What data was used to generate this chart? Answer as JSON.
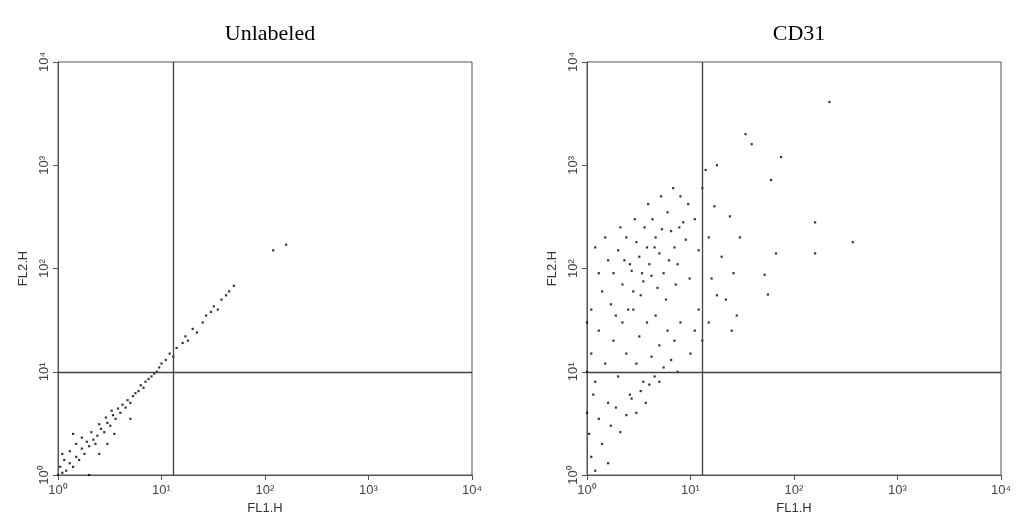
{
  "chart_data": [
    {
      "type": "scatter",
      "title": "Unlabeled",
      "xlabel": "FL1.H",
      "ylabel": "FL2.H",
      "log": "xy",
      "marker": "square",
      "xlim": [
        1,
        10000
      ],
      "ylim": [
        1,
        10000
      ],
      "xticks": [
        {
          "value": 1,
          "label": "10⁰"
        },
        {
          "value": 10,
          "label": "10¹"
        },
        {
          "value": 100,
          "label": "10²"
        },
        {
          "value": 1000,
          "label": "10³"
        },
        {
          "value": 10000,
          "label": "10⁴"
        }
      ],
      "yticks": [
        {
          "value": 1,
          "label": "10⁰"
        },
        {
          "value": 10,
          "label": "10¹"
        },
        {
          "value": 100,
          "label": "10²"
        },
        {
          "value": 1000,
          "label": "10³"
        },
        {
          "value": 10000,
          "label": "10⁴"
        }
      ],
      "ref_lines": [
        {
          "axis": "x",
          "value": 13,
          "color": "#404040"
        },
        {
          "axis": "y",
          "value": 10,
          "color": "#404040"
        }
      ],
      "series": [
        {
          "color": "#000000",
          "x": [
            1.0,
            1.1,
            1.05,
            1.2,
            1.3,
            1.15,
            1.4,
            1.5,
            1.3,
            1.6,
            1.7,
            1.5,
            1.8,
            1.9,
            2.0,
            1.7,
            2.2,
            2.1,
            2.4,
            2.3,
            2.6,
            2.5,
            2.8,
            3.0,
            2.9,
            3.2,
            3.4,
            3.3,
            3.6,
            3.8,
            4.0,
            4.2,
            4.5,
            4.7,
            5.0,
            5.3,
            5.6,
            6.0,
            6.3,
            6.7,
            7.0,
            7.5,
            8.0,
            8.5,
            9.0,
            9.5,
            10,
            11,
            12,
            13,
            14,
            16,
            17,
            18,
            20,
            22,
            25,
            27,
            30,
            32,
            35,
            38,
            42,
            45,
            50,
            120,
            160,
            2.5,
            3.5,
            5.0,
            1.4,
            2.0,
            1.1,
            3.0
          ],
          "values": [
            1.0,
            1.05,
            1.2,
            1.1,
            1.3,
            1.4,
            1.2,
            1.5,
            1.7,
            1.4,
            1.8,
            2.0,
            1.6,
            2.1,
            1.9,
            2.3,
            2.2,
            2.6,
            2.4,
            2.0,
            2.8,
            3.1,
            2.6,
            3.2,
            3.6,
            3.0,
            3.8,
            4.2,
            3.5,
            4.4,
            4.0,
            4.8,
            4.5,
            5.3,
            5.0,
            5.8,
            6.2,
            6.5,
            7.4,
            7.0,
            8.0,
            8.5,
            9.0,
            9.6,
            10,
            11,
            12,
            13,
            15,
            14,
            17,
            19,
            22,
            20,
            26,
            24,
            30,
            35,
            38,
            43,
            40,
            50,
            55,
            60,
            68,
            150,
            170,
            1.6,
            2.5,
            3.5,
            2.5,
            1.0,
            1.6,
            2.0
          ]
        }
      ]
    },
    {
      "type": "scatter",
      "title": "CD31",
      "xlabel": "FL1.H",
      "ylabel": "FL2.H",
      "log": "xy",
      "marker": "square",
      "xlim": [
        1,
        10000
      ],
      "ylim": [
        1,
        10000
      ],
      "xticks": [
        {
          "value": 1,
          "label": "10⁰"
        },
        {
          "value": 10,
          "label": "10¹"
        },
        {
          "value": 100,
          "label": "10²"
        },
        {
          "value": 1000,
          "label": "10³"
        },
        {
          "value": 10000,
          "label": "10⁴"
        }
      ],
      "yticks": [
        {
          "value": 1,
          "label": "10⁰"
        },
        {
          "value": 10,
          "label": "10¹"
        },
        {
          "value": 100,
          "label": "10²"
        },
        {
          "value": 1000,
          "label": "10³"
        },
        {
          "value": 10000,
          "label": "10⁴"
        }
      ],
      "ref_lines": [
        {
          "axis": "x",
          "value": 13,
          "color": "#404040"
        },
        {
          "axis": "y",
          "value": 10,
          "color": "#404040"
        }
      ],
      "series": [
        {
          "color": "#000000",
          "x": [
            1.6,
            1.8,
            2.0,
            2.2,
            2.4,
            2.6,
            2.8,
            3.0,
            3.2,
            3.4,
            3.6,
            3.8,
            4.0,
            4.3,
            4.6,
            5.0,
            5.5,
            6.0,
            6.5,
            7.0,
            7.5,
            8.0,
            8.5,
            9.0,
            9.5,
            1.4,
            1.5,
            1.7,
            2.1,
            2.5,
            2.9,
            3.3,
            3.9,
            4.8,
            5.2,
            5.8,
            6.8,
            7.2,
            1.3,
            1.2,
            1.1,
            1.9,
            2.3,
            2.7,
            3.5,
            4.2,
            4.5,
            5.3,
            6.2,
            7.8,
            9.8,
            11,
            12,
            13,
            14,
            15,
            16,
            17,
            18,
            20,
            22,
            24,
            26,
            28,
            30,
            12,
            11,
            13,
            15,
            10,
            18,
            25,
            1.0,
            1.1,
            1.2,
            1.3,
            1.5,
            1.6,
            1.8,
            2.0,
            2.2,
            2.4,
            2.6,
            2.8,
            3.0,
            3.2,
            3.5,
            3.8,
            4.2,
            4.6,
            5.0,
            5.5,
            6.0,
            6.5,
            7.0,
            7.5,
            8.0,
            1.05,
            1.1,
            1.2,
            1.3,
            1.4,
            1.6,
            1.7,
            1.9,
            2.1,
            2.4,
            2.7,
            3.0,
            3.3,
            3.7,
            4.0,
            4.5,
            5.0,
            1.0,
            1.0,
            1.15,
            220,
            34,
            39,
            75,
            160,
            370,
            160,
            67,
            56,
            52,
            60
          ],
          "values": [
            120,
            90,
            150,
            70,
            200,
            110,
            60,
            180,
            130,
            90,
            250,
            160,
            110,
            300,
            200,
            140,
            90,
            350,
            230,
            160,
            110,
            500,
            280,
            190,
            420,
            60,
            200,
            45,
            250,
            40,
            300,
            55,
            420,
            65,
            500,
            50,
            600,
            70,
            90,
            160,
            40,
            35,
            120,
            95,
            75,
            85,
            160,
            240,
            120,
            250,
            80,
            300,
            150,
            600,
            900,
            200,
            80,
            400,
            1000,
            130,
            50,
            320,
            90,
            35,
            200,
            40,
            25,
            20,
            30,
            15,
            55,
            25,
            30,
            15,
            8,
            25,
            12,
            5,
            20,
            9,
            30,
            15,
            6,
            40,
            12,
            22,
            8,
            30,
            14,
            35,
            18,
            11,
            25,
            13,
            20,
            10,
            30,
            2.5,
            1.5,
            1.1,
            3.5,
            2.0,
            1.3,
            3.0,
            4.5,
            2.6,
            3.8,
            5.5,
            4.0,
            6.5,
            5.0,
            7.5,
            9.0,
            8.0,
            4,
            10,
            6,
            4100,
            2000,
            1600,
            1200,
            280,
            180,
            140,
            140,
            56,
            87,
            720
          ]
        }
      ]
    }
  ]
}
